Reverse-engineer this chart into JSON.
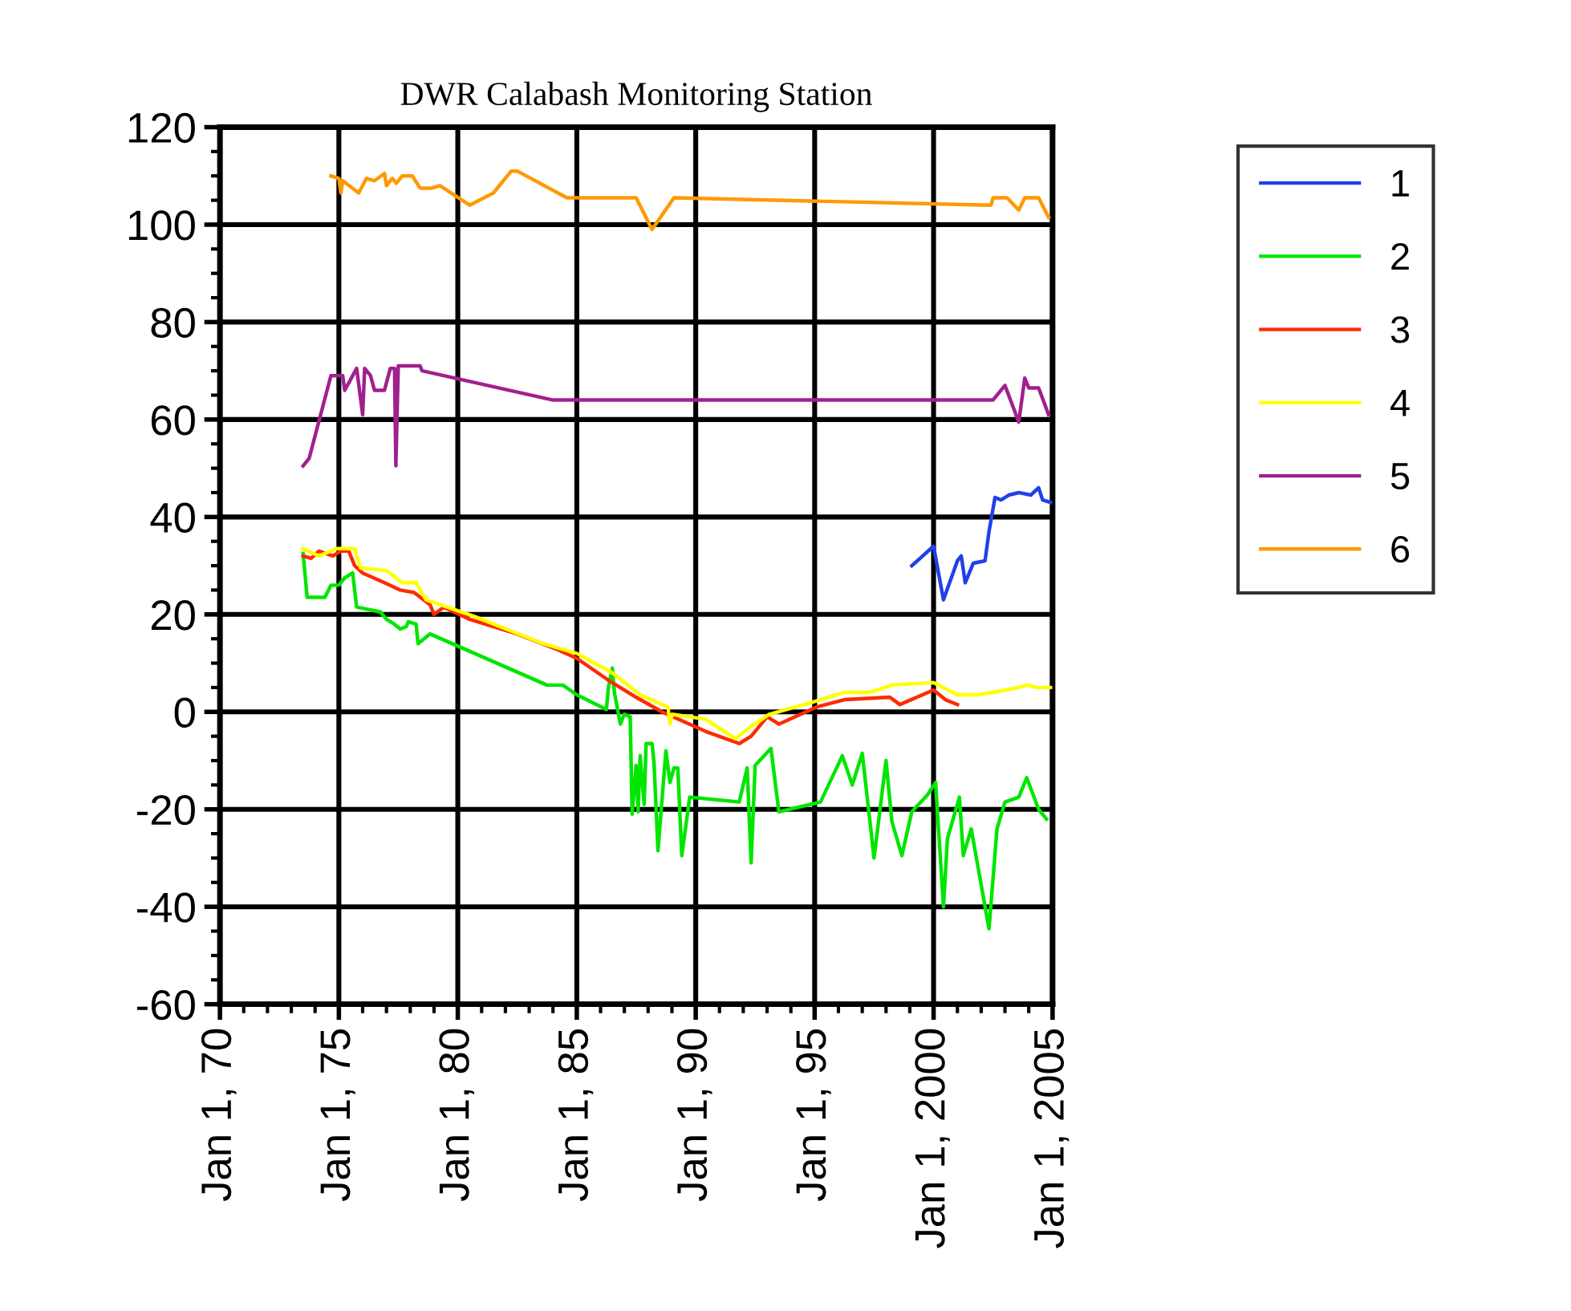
{
  "chart_data": {
    "type": "line",
    "title": "DWR Calabash Monitoring Station",
    "xlim": [
      "1970-01-01",
      "2005-01-01"
    ],
    "xticks": [
      {
        "value": "1970-01-01",
        "label": "Jan 1, 70"
      },
      {
        "value": "1975-01-01",
        "label": "Jan 1, 75"
      },
      {
        "value": "1980-01-01",
        "label": "Jan 1, 80"
      },
      {
        "value": "1985-01-01",
        "label": "Jan 1, 85"
      },
      {
        "value": "1990-01-01",
        "label": "Jan 1, 90"
      },
      {
        "value": "1995-01-01",
        "label": "Jan 1, 95"
      },
      {
        "value": "2000-01-01",
        "label": "Jan 1, 2000"
      },
      {
        "value": "2005-01-01",
        "label": "Jan 1, 2005"
      }
    ],
    "ylim": [
      -60,
      120
    ],
    "yticks": [
      -60,
      -40,
      -20,
      0,
      20,
      40,
      60,
      80,
      100,
      120
    ],
    "grid": true,
    "legend": "top right",
    "marker": "none",
    "line_style": "solid",
    "series": [
      {
        "name": "1",
        "color": "#2040e8",
        "x": [
          "1999-02",
          "2000-01",
          "2000-06",
          "2001-01",
          "2001-03",
          "2001-05",
          "2001-09",
          "2002-03",
          "2002-05",
          "2002-08",
          "2002-11",
          "2003-03",
          "2003-08",
          "2004-02",
          "2004-06",
          "2004-08",
          "2004-12"
        ],
        "values": [
          30,
          34,
          23,
          31,
          32,
          26.5,
          30.5,
          31,
          37,
          44,
          43.5,
          44.5,
          45,
          44.5,
          46,
          43.5,
          43
        ]
      },
      {
        "name": "2",
        "color": "#00e600",
        "x": [
          "1973-07",
          "1973-09",
          "1974-06",
          "1974-09",
          "1975-01",
          "1975-04",
          "1975-08",
          "1975-10",
          "1976-10",
          "1977-01",
          "1977-05",
          "1977-08",
          "1977-11",
          "1977-12",
          "1978-04",
          "1978-05",
          "1978-11",
          "1983-10",
          "1984-06",
          "1985-01",
          "1986-04",
          "1986-05",
          "1986-07",
          "1986-08",
          "1986-11",
          "1987-01",
          "1987-04",
          "1987-05",
          "1987-07",
          "1987-08",
          "1987-09",
          "1987-11",
          "1987-12",
          "1988-03",
          "1988-04",
          "1988-06",
          "1988-08",
          "1988-10",
          "1988-12",
          "1989-02",
          "1989-04",
          "1989-06",
          "1989-10",
          "1991-11",
          "1992-03",
          "1992-05",
          "1992-07",
          "1993-03",
          "1993-07",
          "1995-04",
          "1996-03",
          "1996-08",
          "1997-01",
          "1997-07",
          "1998-01",
          "1998-04",
          "1998-09",
          "1999-02",
          "1999-10",
          "2000-02",
          "2000-06",
          "2000-08",
          "2001-02",
          "2001-04",
          "2001-08",
          "2002-05",
          "2002-09",
          "2003-01",
          "2003-08",
          "2003-12",
          "2004-06",
          "2004-10"
        ],
        "values": [
          32.5,
          23.5,
          23.5,
          26,
          26,
          27.5,
          28.5,
          21.5,
          20.5,
          19,
          18,
          17,
          17.5,
          18.5,
          18,
          14,
          16,
          5.5,
          5.5,
          3.5,
          0.5,
          5,
          9,
          4,
          -2.5,
          -0.5,
          -1,
          -21,
          -11,
          -20.5,
          -9,
          -19,
          -6.5,
          -6.5,
          -10.5,
          -28.5,
          -18,
          -8,
          -14.5,
          -11.5,
          -11.5,
          -29.5,
          -17.5,
          -18.5,
          -11.5,
          -31,
          -11,
          -7.5,
          -20.5,
          -18.5,
          -9,
          -15,
          -8.5,
          -30,
          -10,
          -22.5,
          -29.5,
          -20.5,
          -17,
          -14.5,
          -40,
          -26,
          -17.5,
          -29.5,
          -24,
          -44.5,
          -24,
          -18.5,
          -17.5,
          -13.5,
          -20,
          -22
        ]
      },
      {
        "name": "3",
        "color": "#ff2a00",
        "x": [
          "1973-07",
          "1973-11",
          "1974-03",
          "1974-10",
          "1975-02",
          "1975-06",
          "1975-09",
          "1976-01",
          "1976-12",
          "1977-08",
          "1978-03",
          "1978-11",
          "1979-01",
          "1979-06",
          "1980-07",
          "1982-07",
          "1984-02",
          "1985-01",
          "1986-05",
          "1987-07",
          "1988-08",
          "1990-06",
          "1991-11",
          "1992-05",
          "1993-01",
          "1993-07",
          "1995-02",
          "1996-04",
          "1998-03",
          "1998-08",
          "2000-01",
          "2000-07",
          "2001-01"
        ],
        "values": [
          32,
          31.5,
          33,
          32,
          33,
          33,
          30,
          28.5,
          26.5,
          25,
          24.5,
          22,
          20,
          21.5,
          19,
          16,
          13,
          11,
          6.5,
          3,
          0,
          -4,
          -6.5,
          -5,
          -1,
          -2.5,
          1,
          2.5,
          3,
          1.5,
          4.5,
          2.5,
          1.5
        ]
      },
      {
        "name": "4",
        "color": "#ffff00",
        "x": [
          "1973-07",
          "1974-03",
          "1974-12",
          "1975-09",
          "1975-12",
          "1977-01",
          "1977-09",
          "1978-04",
          "1978-09",
          "1980-10",
          "1983-08",
          "1985-01",
          "1986-07",
          "1987-09",
          "1988-11",
          "1988-12",
          "1989-01",
          "1990-06",
          "1991-09",
          "1992-05",
          "1993-02",
          "1994-12",
          "1996-04",
          "1997-05",
          "1998-04",
          "2000-01",
          "2001-01",
          "2001-11",
          "2003-02",
          "2004-01",
          "2004-05",
          "2004-12"
        ],
        "values": [
          33.5,
          32,
          33.5,
          33.5,
          29.5,
          29,
          26.5,
          26.5,
          23,
          19.5,
          14,
          12,
          8,
          3.5,
          1,
          -2.5,
          -0.5,
          -1.5,
          -5.5,
          -3,
          -0.5,
          2,
          4,
          4,
          5.5,
          6,
          3.5,
          3.5,
          4.5,
          5.5,
          5,
          5
        ]
      },
      {
        "name": "5",
        "color": "#a0208f",
        "x": [
          "1973-07",
          "1973-10",
          "1974-09",
          "1975-03",
          "1975-04",
          "1975-10",
          "1976-01",
          "1976-02",
          "1976-05",
          "1976-07",
          "1976-12",
          "1977-03",
          "1977-05-05",
          "1977-05-25",
          "1977-07",
          "1978-06",
          "1978-07",
          "1984-01",
          "2002-07",
          "2003-01",
          "2003-08",
          "2003-11",
          "2004-01",
          "2004-06",
          "2004-11"
        ],
        "values": [
          50.5,
          52,
          69,
          69,
          66,
          70.5,
          61,
          70.5,
          69,
          66,
          66,
          70.5,
          70.5,
          50.5,
          71,
          71,
          70,
          64,
          64,
          67,
          59.5,
          68.5,
          66.5,
          66.5,
          61
        ]
      },
      {
        "name": "6",
        "color": "#ff9900",
        "x": [
          "1974-09",
          "1975-01",
          "1975-02",
          "1975-03",
          "1975-11",
          "1976-03",
          "1976-07",
          "1976-12",
          "1977-01",
          "1977-04",
          "1977-06",
          "1977-09",
          "1978-02",
          "1978-06",
          "1978-12",
          "1979-04",
          "1980-07",
          "1981-07",
          "1982-04",
          "1982-07",
          "1984-08",
          "1987-07",
          "1988-03",
          "1989-02",
          "2002-06",
          "2002-07",
          "2003-02",
          "2003-08",
          "2003-11",
          "2004-06",
          "2004-11"
        ],
        "values": [
          110,
          109.5,
          106.5,
          109,
          106.5,
          109.5,
          109,
          110.5,
          108,
          109.5,
          108.5,
          110,
          110,
          107.5,
          107.5,
          108,
          104,
          106.5,
          111,
          111,
          105.5,
          105.5,
          99,
          105.5,
          104,
          105.5,
          105.5,
          103,
          105.5,
          105.5,
          101.5
        ]
      }
    ]
  }
}
